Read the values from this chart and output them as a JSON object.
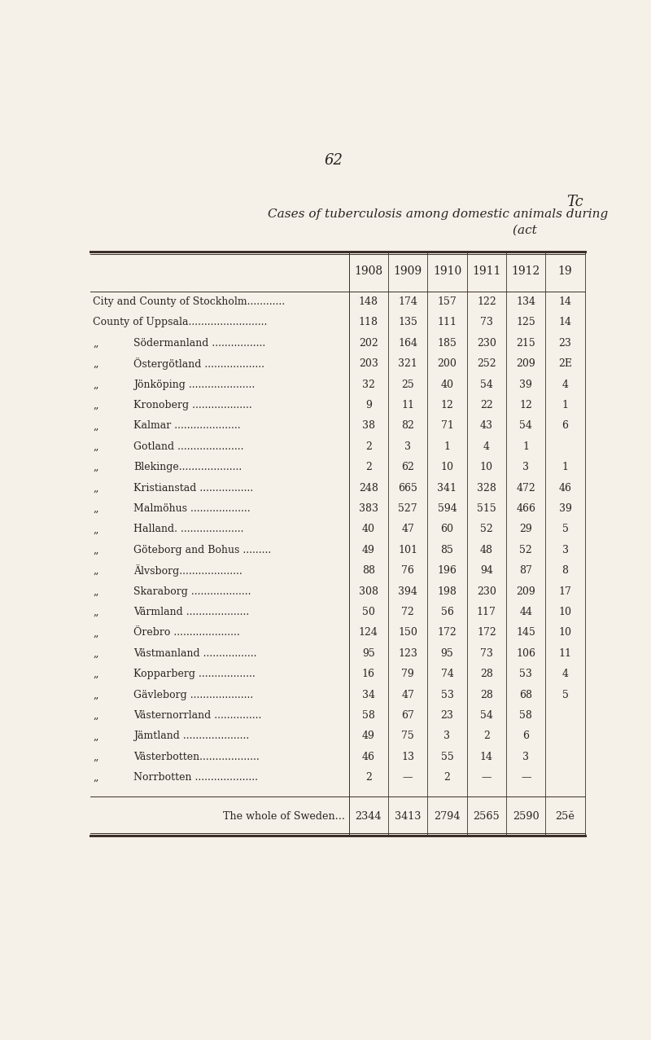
{
  "page_number": "62",
  "title_top_right": "Tc",
  "title_line1": "Cases of tuberculosis among domestic animals during ",
  "title_line2": "(act ",
  "bg_color": "#f5f0e8",
  "columns": [
    "1908",
    "1909",
    "1910",
    "1911",
    "1912",
    "19"
  ],
  "rows": [
    {
      "label": "City and County of Stockholm............",
      "prefix": "",
      "values": [
        "148",
        "174",
        "157",
        "122",
        "134",
        "14"
      ]
    },
    {
      "label": "County of Uppsala.........................",
      "prefix": "",
      "values": [
        "118",
        "135",
        "111",
        "73",
        "125",
        "14"
      ]
    },
    {
      "label": "Södermanland .................",
      "prefix": "„",
      "values": [
        "202",
        "164",
        "185",
        "230",
        "215",
        "23"
      ]
    },
    {
      "label": "Östergötland ...................",
      "prefix": "„",
      "values": [
        "203",
        "321",
        "200",
        "252",
        "209",
        "2E"
      ]
    },
    {
      "label": "Jönköping .....................",
      "prefix": "„",
      "values": [
        "32",
        "25",
        "40",
        "54",
        "39",
        "4"
      ]
    },
    {
      "label": "Kronoberg ...................",
      "prefix": "„",
      "values": [
        "9",
        "11",
        "12",
        "22",
        "12",
        "1"
      ]
    },
    {
      "label": "Kalmar .....................",
      "prefix": "„",
      "values": [
        "38",
        "82",
        "71",
        "43",
        "54",
        "6"
      ]
    },
    {
      "label": "Gotland .....................",
      "prefix": "„",
      "values": [
        "2",
        "3",
        "1",
        "4",
        "1",
        ""
      ]
    },
    {
      "label": "Blekinge....................",
      "prefix": "„",
      "values": [
        "2",
        "62",
        "10",
        "10",
        "3",
        "1"
      ]
    },
    {
      "label": "Kristianstad .................",
      "prefix": "„",
      "values": [
        "248",
        "665",
        "341",
        "328",
        "472",
        "46"
      ]
    },
    {
      "label": "Malmöhus ...................",
      "prefix": "„",
      "values": [
        "383",
        "527",
        "594",
        "515",
        "466",
        "39"
      ]
    },
    {
      "label": "Halland. ....................",
      "prefix": "„",
      "values": [
        "40",
        "47",
        "60",
        "52",
        "29",
        "5"
      ]
    },
    {
      "label": "Göteborg and Bohus .........",
      "prefix": "„",
      "values": [
        "49",
        "101",
        "85",
        "48",
        "52",
        "3"
      ]
    },
    {
      "label": "Älvsborg....................",
      "prefix": "„",
      "values": [
        "88",
        "76",
        "196",
        "94",
        "87",
        "8"
      ]
    },
    {
      "label": "Skaraborg ...................",
      "prefix": "„",
      "values": [
        "308",
        "394",
        "198",
        "230",
        "209",
        "17"
      ]
    },
    {
      "label": "Värmland ....................",
      "prefix": "„",
      "values": [
        "50",
        "72",
        "56",
        "117",
        "44",
        "10"
      ]
    },
    {
      "label": "Örebro .....................",
      "prefix": "„",
      "values": [
        "124",
        "150",
        "172",
        "172",
        "145",
        "10"
      ]
    },
    {
      "label": "Västmanland .................",
      "prefix": "„",
      "values": [
        "95",
        "123",
        "95",
        "73",
        "106",
        "11"
      ]
    },
    {
      "label": "Kopparberg ..................",
      "prefix": "„",
      "values": [
        "16",
        "79",
        "74",
        "28",
        "53",
        "4"
      ]
    },
    {
      "label": "Gävleborg ....................",
      "prefix": "„",
      "values": [
        "34",
        "47",
        "53",
        "28",
        "68",
        "5"
      ]
    },
    {
      "label": "Västernorrland ...............",
      "prefix": "„",
      "values": [
        "58",
        "67",
        "23",
        "54",
        "58",
        ""
      ]
    },
    {
      "label": "Jämtland .....................",
      "prefix": "„",
      "values": [
        "49",
        "75",
        "3",
        "2",
        "6",
        ""
      ]
    },
    {
      "label": "Västerbotten...................",
      "prefix": "„",
      "values": [
        "46",
        "13",
        "55",
        "14",
        "3",
        ""
      ]
    },
    {
      "label": "Norrbotten ....................",
      "prefix": "„",
      "values": [
        "2",
        "—",
        "2",
        "—",
        "—",
        ""
      ]
    }
  ],
  "footer_label": "The whole of Sweden...",
  "footer_values": [
    "2344",
    "3413",
    "2794",
    "2565",
    "2590",
    "25ĕ"
  ],
  "text_color": "#2a2520",
  "line_color": "#3a3028"
}
